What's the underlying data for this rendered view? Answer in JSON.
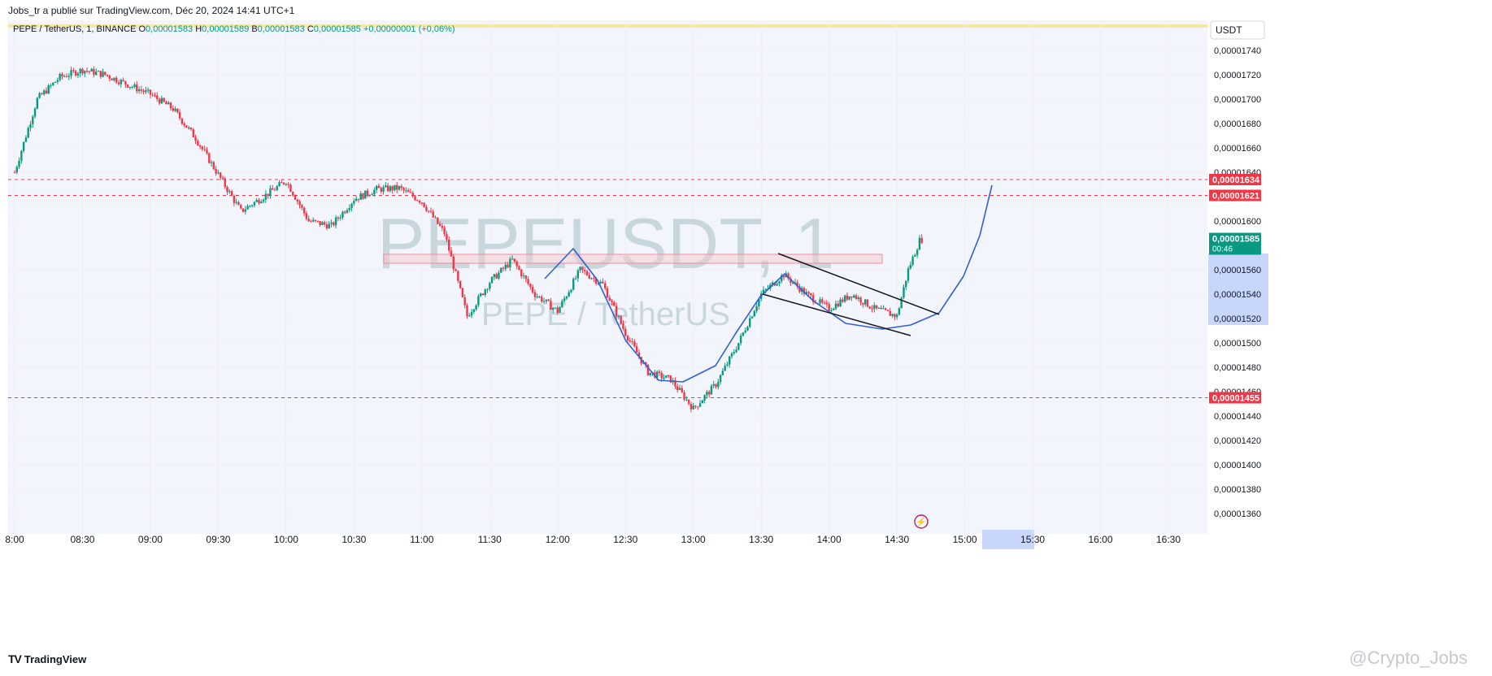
{
  "header": {
    "publisher_line": "Jobs_tr a publié sur TradingView.com, Déc 20, 2024 14:41 UTC+1"
  },
  "legend": {
    "symbol": "PEPE / TetherUS, 1, BINANCE",
    "o_label": "O",
    "o_value": "0,00001583",
    "h_label": "H",
    "h_value": "0,00001589",
    "b_label": "B",
    "b_value": "0,00001583",
    "c_label": "C",
    "c_value": "0,00001585",
    "change": "+0,00000001 (+0,06%)"
  },
  "currency_button": "USDT",
  "watermark": {
    "ticker": "PEPEUSDT, 1",
    "name": "PEPE / TetherUS"
  },
  "footer": {
    "brand": "TradingView",
    "author_mark": "@Crypto_Jobs"
  },
  "colors": {
    "up": "#089981",
    "down": "#f23645",
    "curve": "#2f5fd8",
    "level_line": "#f23645",
    "zone_fill": "#f7c9cd",
    "grid": "#eceef3",
    "bg": "#f3f5fc",
    "axis_highlight": "#c9d6fb"
  },
  "chart_data": {
    "type": "candlestick",
    "symbol": "PEPE / TetherUS",
    "interval": "1",
    "exchange": "BINANCE",
    "x_ticks": [
      "8:00",
      "08:30",
      "09:00",
      "09:30",
      "10:00",
      "10:30",
      "11:00",
      "11:30",
      "12:00",
      "12:30",
      "13:00",
      "13:30",
      "14:00",
      "14:30",
      "15:00",
      "15:30",
      "16:00",
      "16:30"
    ],
    "y_ticks": [
      "0,00001740",
      "0,00001720",
      "0,00001700",
      "0,00001680",
      "0,00001660",
      "0,00001640",
      "0,00001600",
      "0,00001560",
      "0,00001540",
      "0,00001520",
      "0,00001500",
      "0,00001480",
      "0,00001460",
      "0,00001440",
      "0,00001420",
      "0,00001400",
      "0,00001380",
      "0,00001360"
    ],
    "ylim": [
      1.348e-05,
      1.75e-05
    ],
    "horizontal_levels": [
      {
        "value": "0,00001634",
        "price": 1.634e-05
      },
      {
        "value": "0,00001621",
        "price": 1.621e-05
      },
      {
        "value": "0,00001455",
        "price": 1.455e-05
      }
    ],
    "last_price": {
      "value": "0,00001585",
      "countdown": "00:46"
    },
    "price_path": [
      [
        "08:00",
        1640
      ],
      [
        "08:10",
        1700
      ],
      [
        "08:20",
        1718
      ],
      [
        "08:30",
        1724
      ],
      [
        "08:40",
        1720
      ],
      [
        "08:50",
        1712
      ],
      [
        "09:00",
        1704
      ],
      [
        "09:10",
        1692
      ],
      [
        "09:20",
        1668
      ],
      [
        "09:30",
        1638
      ],
      [
        "09:40",
        1608
      ],
      [
        "09:50",
        1620
      ],
      [
        "10:00",
        1633
      ],
      [
        "10:10",
        1600
      ],
      [
        "10:20",
        1596
      ],
      [
        "10:30",
        1618
      ],
      [
        "10:40",
        1626
      ],
      [
        "10:50",
        1627
      ],
      [
        "11:00",
        1616
      ],
      [
        "11:10",
        1590
      ],
      [
        "11:20",
        1522
      ],
      [
        "11:30",
        1550
      ],
      [
        "11:40",
        1568
      ],
      [
        "11:50",
        1540
      ],
      [
        "12:00",
        1526
      ],
      [
        "12:10",
        1560
      ],
      [
        "12:20",
        1548
      ],
      [
        "12:30",
        1508
      ],
      [
        "12:40",
        1476
      ],
      [
        "12:50",
        1470
      ],
      [
        "13:00",
        1446
      ],
      [
        "13:10",
        1466
      ],
      [
        "13:20",
        1500
      ],
      [
        "13:30",
        1540
      ],
      [
        "13:40",
        1556
      ],
      [
        "13:50",
        1540
      ],
      [
        "14:00",
        1528
      ],
      [
        "14:10",
        1540
      ],
      [
        "14:20",
        1528
      ],
      [
        "14:30",
        1522
      ],
      [
        "14:35",
        1560
      ],
      [
        "14:40",
        1584
      ],
      [
        "14:41",
        1585
      ]
    ]
  }
}
